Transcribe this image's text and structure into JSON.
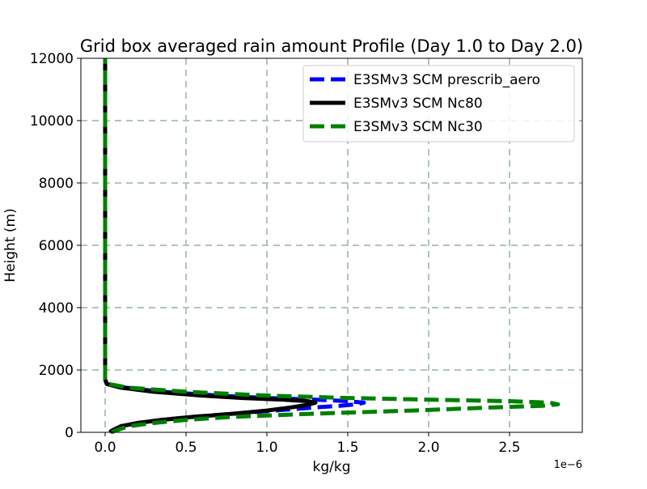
{
  "chart_data": {
    "type": "line",
    "title": "Grid box averaged rain amount Profile (Day 1.0 to Day 2.0)",
    "xlabel": "kg/kg",
    "ylabel": "Height (m)",
    "x_offset_label": "1e−6",
    "xlim": [
      -0.15,
      2.95
    ],
    "ylim": [
      0,
      12000
    ],
    "x_ticks": [
      0.0,
      0.5,
      1.0,
      1.5,
      2.0,
      2.5
    ],
    "x_tick_labels": [
      "0.0",
      "0.5",
      "1.0",
      "1.5",
      "2.0",
      "2.5"
    ],
    "y_ticks": [
      0,
      2000,
      4000,
      6000,
      8000,
      10000,
      12000
    ],
    "y_tick_labels": [
      "0",
      "2000",
      "4000",
      "6000",
      "8000",
      "10000",
      "12000"
    ],
    "grid": true,
    "legend_position": "top-right",
    "series": [
      {
        "name": "E3SMv3 SCM prescrib_aero",
        "color": "#0000ff",
        "style": "dashed",
        "points": [
          [
            0.03,
            0
          ],
          [
            0.04,
            50
          ],
          [
            0.06,
            100
          ],
          [
            0.1,
            200
          ],
          [
            0.2,
            300
          ],
          [
            0.35,
            400
          ],
          [
            0.55,
            500
          ],
          [
            0.8,
            600
          ],
          [
            1.05,
            700
          ],
          [
            1.3,
            800
          ],
          [
            1.45,
            850
          ],
          [
            1.55,
            900
          ],
          [
            1.6,
            950
          ],
          [
            1.5,
            1000
          ],
          [
            1.3,
            1050
          ],
          [
            1.0,
            1100
          ],
          [
            0.7,
            1180
          ],
          [
            0.35,
            1300
          ],
          [
            0.1,
            1450
          ],
          [
            0.01,
            1550
          ],
          [
            0.0,
            1700
          ],
          [
            0.0,
            3000
          ],
          [
            0.0,
            6000
          ],
          [
            0.0,
            9000
          ],
          [
            0.0,
            12000
          ]
        ]
      },
      {
        "name": "E3SMv3 SCM Nc80",
        "color": "#000000",
        "style": "solid",
        "points": [
          [
            0.03,
            0
          ],
          [
            0.04,
            50
          ],
          [
            0.06,
            100
          ],
          [
            0.1,
            200
          ],
          [
            0.2,
            300
          ],
          [
            0.35,
            400
          ],
          [
            0.55,
            500
          ],
          [
            0.8,
            600
          ],
          [
            1.0,
            700
          ],
          [
            1.15,
            800
          ],
          [
            1.25,
            880
          ],
          [
            1.3,
            950
          ],
          [
            1.25,
            1000
          ],
          [
            1.1,
            1050
          ],
          [
            0.85,
            1100
          ],
          [
            0.6,
            1180
          ],
          [
            0.3,
            1300
          ],
          [
            0.1,
            1430
          ],
          [
            0.01,
            1550
          ],
          [
            0.0,
            1700
          ],
          [
            0.0,
            3000
          ],
          [
            0.0,
            6000
          ],
          [
            0.0,
            9000
          ],
          [
            0.0,
            12000
          ]
        ]
      },
      {
        "name": "E3SMv3 SCM Nc30",
        "color": "#008000",
        "style": "dashed",
        "points": [
          [
            0.04,
            0
          ],
          [
            0.06,
            50
          ],
          [
            0.09,
            100
          ],
          [
            0.15,
            200
          ],
          [
            0.3,
            300
          ],
          [
            0.5,
            400
          ],
          [
            0.8,
            500
          ],
          [
            1.3,
            600
          ],
          [
            1.9,
            700
          ],
          [
            2.4,
            800
          ],
          [
            2.7,
            850
          ],
          [
            2.8,
            900
          ],
          [
            2.75,
            950
          ],
          [
            2.5,
            1000
          ],
          [
            2.0,
            1050
          ],
          [
            1.5,
            1100
          ],
          [
            1.0,
            1180
          ],
          [
            0.5,
            1300
          ],
          [
            0.15,
            1430
          ],
          [
            0.02,
            1550
          ],
          [
            0.0,
            1700
          ],
          [
            0.0,
            3000
          ],
          [
            0.0,
            6000
          ],
          [
            0.0,
            9000
          ],
          [
            0.0,
            12000
          ]
        ]
      }
    ]
  }
}
